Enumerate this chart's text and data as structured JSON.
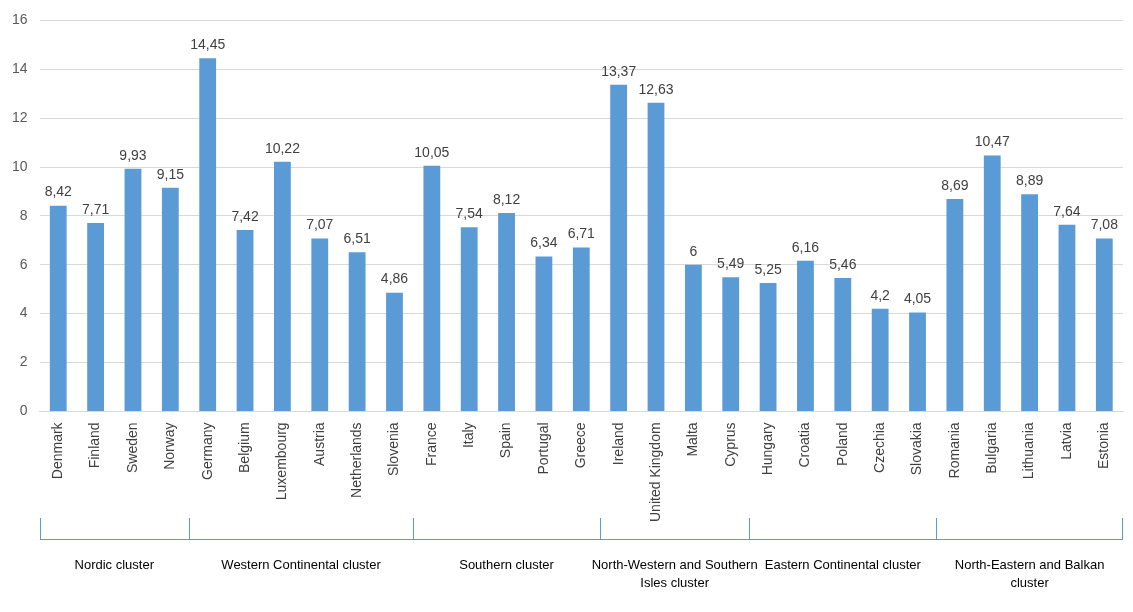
{
  "chart_data": {
    "type": "bar",
    "categories": [
      "Denmark",
      "Finland",
      "Sweden",
      "Norway",
      "Germany",
      "Belgium",
      "Luxembourg",
      "Austria",
      "Netherlands",
      "Slovenia",
      "France",
      "Italy",
      "Spain",
      "Portugal",
      "Greece",
      "Ireland",
      "United Kingdom",
      "Malta",
      "Cyprus",
      "Hungary",
      "Croatia",
      "Poland",
      "Czechia",
      "Slovakia",
      "Romania",
      "Bulgaria",
      "Lithuania",
      "Latvia",
      "Estonia"
    ],
    "values": [
      8.42,
      7.71,
      9.93,
      9.15,
      14.45,
      7.42,
      10.22,
      7.07,
      6.51,
      4.86,
      10.05,
      7.54,
      8.12,
      6.34,
      6.71,
      13.37,
      12.63,
      6,
      5.49,
      5.25,
      6.16,
      5.46,
      4.2,
      4.05,
      8.69,
      10.47,
      8.89,
      7.64,
      7.08
    ],
    "value_labels": [
      "8,42",
      "7,71",
      "9,93",
      "9,15",
      "14,45",
      "7,42",
      "10,22",
      "7,07",
      "6,51",
      "4,86",
      "10,05",
      "7,54",
      "8,12",
      "6,34",
      "6,71",
      "13,37",
      "12,63",
      "6",
      "5,49",
      "5,25",
      "6,16",
      "5,46",
      "4,2",
      "4,05",
      "8,69",
      "10,47",
      "8,89",
      "7,64",
      "7,08"
    ],
    "color": "#5b9bd5",
    "ylim": [
      0,
      16
    ],
    "yticks": [
      0,
      2,
      4,
      6,
      8,
      10,
      12,
      14,
      16
    ],
    "grid": "y",
    "legend": false,
    "annotations": [
      "Nordic cluster",
      "Western Continental cluster",
      "Southern cluster",
      "North-Western and Southern Isles cluster",
      "Eastern Continental cluster",
      "North-Eastern and Balkan cluster"
    ]
  }
}
